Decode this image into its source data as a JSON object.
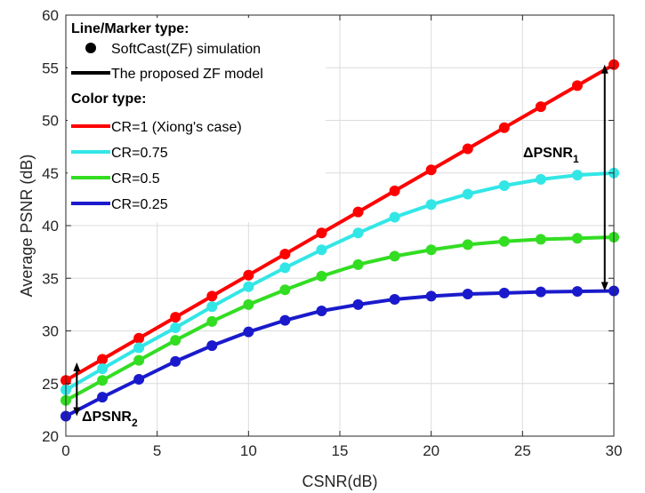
{
  "chart_data": {
    "type": "line",
    "xlabel": "CSNR(dB)",
    "ylabel": "Average PSNR (dB)",
    "xlim": [
      0,
      30
    ],
    "ylim": [
      20,
      60
    ],
    "xticks": [
      0,
      5,
      10,
      15,
      20,
      25,
      30
    ],
    "yticks": [
      20,
      25,
      30,
      35,
      40,
      45,
      50,
      55,
      60
    ],
    "grid": true,
    "x": [
      0,
      2,
      4,
      6,
      8,
      10,
      12,
      14,
      16,
      18,
      20,
      22,
      24,
      26,
      28,
      30
    ],
    "series": [
      {
        "name": "CR=1 (Xiong's case)",
        "color": "#ff0000",
        "values": [
          25.3,
          27.3,
          29.3,
          31.3,
          33.3,
          35.3,
          37.3,
          39.3,
          41.3,
          43.3,
          45.3,
          47.3,
          49.3,
          51.3,
          53.3,
          55.3
        ]
      },
      {
        "name": "CR=0.75",
        "color": "#33e6e6",
        "values": [
          24.4,
          26.4,
          28.4,
          30.3,
          32.3,
          34.2,
          36.0,
          37.7,
          39.3,
          40.8,
          42.0,
          43.0,
          43.8,
          44.4,
          44.8,
          45.0
        ]
      },
      {
        "name": "CR=0.5",
        "color": "#33dd22",
        "values": [
          23.4,
          25.3,
          27.2,
          29.1,
          30.9,
          32.5,
          33.9,
          35.2,
          36.3,
          37.1,
          37.7,
          38.2,
          38.5,
          38.7,
          38.8,
          38.9
        ]
      },
      {
        "name": "CR=0.25",
        "color": "#1a1acc",
        "values": [
          21.9,
          23.7,
          25.4,
          27.1,
          28.6,
          29.9,
          31.0,
          31.9,
          32.5,
          33.0,
          33.3,
          33.5,
          33.6,
          33.7,
          33.75,
          33.8
        ]
      }
    ],
    "legend": {
      "position": "top-left",
      "marker_header": "Line/Marker type:",
      "marker_items": [
        "SoftCast(ZF) simulation",
        "The proposed ZF model"
      ],
      "color_header": "Color type:"
    },
    "annotations": [
      {
        "label": "ΔPSNR",
        "subscript": "1",
        "x": 29.5,
        "y_from": 33.8,
        "y_to": 55.3
      },
      {
        "label": "ΔPSNR",
        "subscript": "2",
        "x": 0.6,
        "y_from": 21.9,
        "y_to": 27.0
      }
    ]
  }
}
